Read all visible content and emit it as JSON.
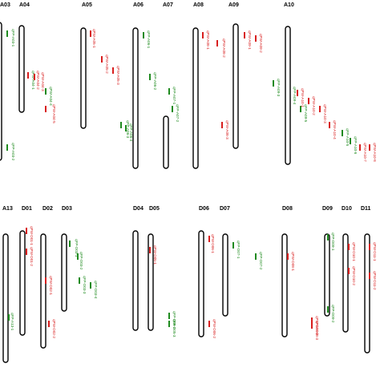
{
  "colors": {
    "chromosome": "#000000",
    "green": "#1e8a1e",
    "red": "#d81e1e",
    "label": "#000000"
  },
  "chromosomes": [
    {
      "name": "A03",
      "qtls": [
        {
          "label": "qFP-A03-1",
          "color": "green"
        },
        {
          "label": "qFP-A03-2",
          "color": "green"
        }
      ]
    },
    {
      "name": "A04",
      "qtls": [
        {
          "label": "qPW-A04-1",
          "color": "green"
        },
        {
          "label": "qPW-A04-2",
          "color": "red"
        },
        {
          "label": "qPW-A04-3",
          "color": "red"
        },
        {
          "label": "qPW-A04-4",
          "color": "green"
        },
        {
          "label": "qPW-A04-5",
          "color": "red"
        }
      ]
    },
    {
      "name": "A05",
      "qtls": [
        {
          "label": "qPW-A05-1",
          "color": "red"
        },
        {
          "label": "qPW-A05-2",
          "color": "red"
        },
        {
          "label": "qPW-A05-3",
          "color": "red"
        }
      ]
    },
    {
      "name": "A06",
      "qtls": [
        {
          "label": "qFP-A06-1",
          "color": "green"
        },
        {
          "label": "qFP-A06-2",
          "color": "green"
        },
        {
          "label": "qFP-A06-3",
          "color": "green"
        },
        {
          "label": "qFP-A06-4",
          "color": "green"
        }
      ]
    },
    {
      "name": "A07",
      "qtls": [
        {
          "label": "qFP-A07-1",
          "color": "green"
        },
        {
          "label": "qFP-A07-2",
          "color": "green"
        }
      ]
    },
    {
      "name": "A08",
      "qtls": [
        {
          "label": "qPW-A08-1",
          "color": "red"
        },
        {
          "label": "qPW-A08-2",
          "color": "red"
        },
        {
          "label": "qPW-A08-3",
          "color": "red"
        }
      ]
    },
    {
      "name": "A09",
      "qtls": [
        {
          "label": "qPW-A09-1",
          "color": "red"
        },
        {
          "label": "qPW-A09-2",
          "color": "red"
        },
        {
          "label": "qFP-A09-3",
          "color": "green"
        },
        {
          "label": "qFP-A09-4",
          "color": "green"
        },
        {
          "label": "qFP-A09-5",
          "color": "green"
        }
      ]
    },
    {
      "name": "A10",
      "qtls": [
        {
          "label": "qPW-A10-1",
          "color": "red"
        },
        {
          "label": "qPW-A10-2",
          "color": "red"
        },
        {
          "label": "qPW-A10-3",
          "color": "red"
        },
        {
          "label": "qPW-A10-4",
          "color": "red"
        },
        {
          "label": "qFP-A10-5",
          "color": "green"
        },
        {
          "label": "qFP-A10-6",
          "color": "green"
        },
        {
          "label": "qPW-A10-7",
          "color": "red"
        },
        {
          "label": "qPW-A10-8",
          "color": "red"
        }
      ]
    },
    {
      "name": "A13",
      "qtls": [
        {
          "label": "qFP-A13-1",
          "color": "green"
        }
      ]
    },
    {
      "name": "D01",
      "qtls": [
        {
          "label": "qPW-D01-1",
          "color": "red"
        },
        {
          "label": "qPW-D01-2",
          "color": "red"
        }
      ]
    },
    {
      "name": "D02",
      "qtls": [
        {
          "label": "qPW-D02-1",
          "color": "red"
        },
        {
          "label": "qPW-D02-2",
          "color": "red"
        },
        {
          "label": "qPW-D02-3",
          "color": "red"
        }
      ]
    },
    {
      "name": "D03",
      "qtls": [
        {
          "label": "qFP-D03-1",
          "color": "green"
        },
        {
          "label": "qFP-D03-2",
          "color": "green"
        },
        {
          "label": "qFP-D03-3",
          "color": "green"
        },
        {
          "label": "qFP-D03-4",
          "color": "green"
        }
      ]
    },
    {
      "name": "D04",
      "qtls": []
    },
    {
      "name": "D05",
      "qtls": [
        {
          "label": "qPW-D05-1",
          "color": "red"
        },
        {
          "label": "qFP-D05-2",
          "color": "green"
        },
        {
          "label": "qFP-D05-3",
          "color": "green"
        }
      ]
    },
    {
      "name": "D06",
      "qtls": [
        {
          "label": "qPW-D06-1",
          "color": "red"
        },
        {
          "label": "qPW-D06-2",
          "color": "red"
        }
      ]
    },
    {
      "name": "D07",
      "qtls": [
        {
          "label": "qFP-D07-1",
          "color": "green"
        },
        {
          "label": "qFP-D07-2",
          "color": "green"
        }
      ]
    },
    {
      "name": "D08",
      "qtls": [
        {
          "label": "qPW-D08-1",
          "color": "red"
        },
        {
          "label": "qPW-D08-2",
          "color": "red"
        },
        {
          "label": "qPW-D08-3",
          "color": "red"
        }
      ]
    },
    {
      "name": "D09",
      "qtls": [
        {
          "label": "qFP-D09-1",
          "color": "green"
        },
        {
          "label": "qFP-D09-2",
          "color": "green"
        }
      ]
    },
    {
      "name": "D10",
      "qtls": [
        {
          "label": "qPW-D10-1",
          "color": "red"
        },
        {
          "label": "qPW-D10-2",
          "color": "red"
        }
      ]
    },
    {
      "name": "D11",
      "qtls": [
        {
          "label": "qPW-D11-1",
          "color": "red"
        },
        {
          "label": "qPW-D11-2",
          "color": "red"
        }
      ]
    }
  ]
}
